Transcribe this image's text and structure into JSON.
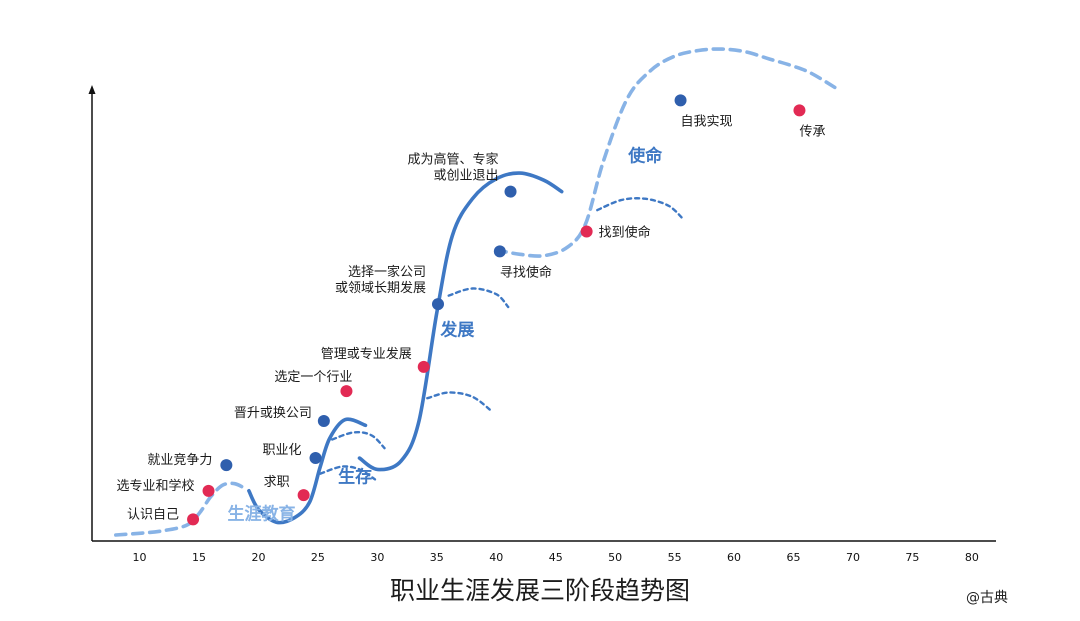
{
  "title": "职业生涯发展三阶段趋势图",
  "signature": "@古典",
  "colors": {
    "primary_blue": "#3e78c4",
    "light_blue": "#88b3e6",
    "point_blue": "#2f5fad",
    "point_red": "#e22a54",
    "axis": "#111111"
  },
  "chart_data": {
    "type": "line",
    "title": "职业生涯发展三阶段趋势图",
    "xlabel": "",
    "ylabel": "",
    "xlim": [
      6,
      80
    ],
    "x_ticks": [
      10,
      15,
      20,
      25,
      30,
      35,
      40,
      45,
      50,
      55,
      60,
      65,
      70,
      75,
      80
    ],
    "grid": false,
    "legend": "none",
    "stages": [
      {
        "name": "生涯教育",
        "label_color": "#88b3e6",
        "curve": [
          {
            "style": "dashed",
            "color": "#88b3e6",
            "x": [
              8,
              10,
              12,
              14,
              15,
              16,
              17,
              18,
              19
            ],
            "y": [
              0,
              0.6,
              1.5,
              3.5,
              7.5,
              13.5,
              17.5,
              18,
              16
            ]
          }
        ]
      },
      {
        "name": "生存",
        "label_color": "#3e78c4",
        "curve": [
          {
            "style": "solid",
            "color": "#3e78c4",
            "x": [
              19.2,
              20,
              21.5,
              23,
              24.3,
              25.2,
              26,
              27.3,
              29
            ],
            "y": [
              15.5,
              9,
              4.5,
              6,
              11.5,
              24,
              34,
              40.5,
              38.5
            ]
          },
          {
            "style": "dashed",
            "color": "#3e78c4",
            "x": [
              25.2,
              27,
              28.5,
              29.8
            ],
            "y": [
              21.5,
              24,
              23,
              19.5
            ]
          },
          {
            "style": "dashed",
            "color": "#3e78c4",
            "x": [
              26.2,
              28,
              29.5,
              30.6
            ],
            "y": [
              33.5,
              36,
              35,
              30.5
            ]
          }
        ]
      },
      {
        "name": "发展",
        "label_color": "#3e78c4",
        "curve": [
          {
            "style": "solid",
            "color": "#3e78c4",
            "x": [
              28.5,
              30,
              32,
              33.5,
              35,
              36.3,
              38,
              40,
              42,
              44,
              45.5
            ],
            "y": [
              27,
              23,
              26,
              40,
              78,
              105,
              118,
              125,
              127,
              124.5,
              120.5
            ]
          },
          {
            "style": "dashed",
            "color": "#3e78c4",
            "x": [
              34.2,
              36,
              38,
              39.6
            ],
            "y": [
              48,
              50,
              48.5,
              43.5
            ]
          },
          {
            "style": "dashed",
            "color": "#3e78c4",
            "x": [
              36,
              38,
              40,
              41
            ],
            "y": [
              84,
              86.5,
              84.5,
              80
            ]
          }
        ]
      },
      {
        "name": "使命",
        "label_color": "#3e78c4",
        "curve": [
          {
            "style": "dashed",
            "color": "#88b3e6",
            "x": [
              40,
              42,
              44,
              46,
              47.5,
              49,
              51,
              53,
              55,
              57,
              59,
              61,
              63,
              65,
              66.5,
              68.5
            ],
            "y": [
              100,
              98.5,
              98,
              101,
              109,
              131,
              153,
              163,
              168,
              170,
              170.5,
              169.5,
              167,
              164.5,
              162,
              157
            ]
          },
          {
            "style": "dashed",
            "color": "#3e78c4",
            "x": [
              48.5,
              50.5,
              52.5,
              54.5,
              55.8
            ],
            "y": [
              114,
              117.5,
              118,
              115.5,
              110.5
            ]
          }
        ]
      }
    ],
    "points": [
      {
        "label": "认识自己",
        "x": 14.5,
        "y": 5.5,
        "color": "red",
        "label_side": "left"
      },
      {
        "label": "选专业和学校",
        "x": 15.8,
        "y": 15.5,
        "color": "red",
        "label_side": "left"
      },
      {
        "label": "就业竞争力",
        "x": 17.3,
        "y": 24.5,
        "color": "blue",
        "label_side": "left"
      },
      {
        "label": "求职",
        "x": 23.8,
        "y": 14,
        "color": "red",
        "label_side": "left"
      },
      {
        "label": "职业化",
        "x": 24.8,
        "y": 27,
        "color": "blue",
        "label_side": "left"
      },
      {
        "label": "晋升或换公司",
        "x": 25.5,
        "y": 40,
        "color": "blue",
        "label_side": "left"
      },
      {
        "label": "选定一个行业",
        "x": 27.4,
        "y": 50.5,
        "color": "red",
        "label_side": "left"
      },
      {
        "label": "管理或专业发展",
        "x": 33.9,
        "y": 59,
        "color": "red",
        "label_side": "left"
      },
      {
        "label": "选择一家公司\n或领域长期发展",
        "x": 35.1,
        "y": 81,
        "color": "blue",
        "label_side": "left"
      },
      {
        "label": "成为高管、专家\n或创业退出",
        "x": 41.2,
        "y": 120.5,
        "color": "blue",
        "label_side": "left"
      },
      {
        "label": "寻找使命",
        "x": 40.3,
        "y": 99.5,
        "color": "blue",
        "label_side": "below"
      },
      {
        "label": "找到使命",
        "x": 47.6,
        "y": 106.5,
        "color": "red",
        "label_side": "right"
      },
      {
        "label": "自我实现",
        "x": 55.5,
        "y": 152.5,
        "color": "blue",
        "label_side": "below"
      },
      {
        "label": "传承",
        "x": 65.5,
        "y": 149,
        "color": "red",
        "label_side": "below"
      }
    ]
  }
}
